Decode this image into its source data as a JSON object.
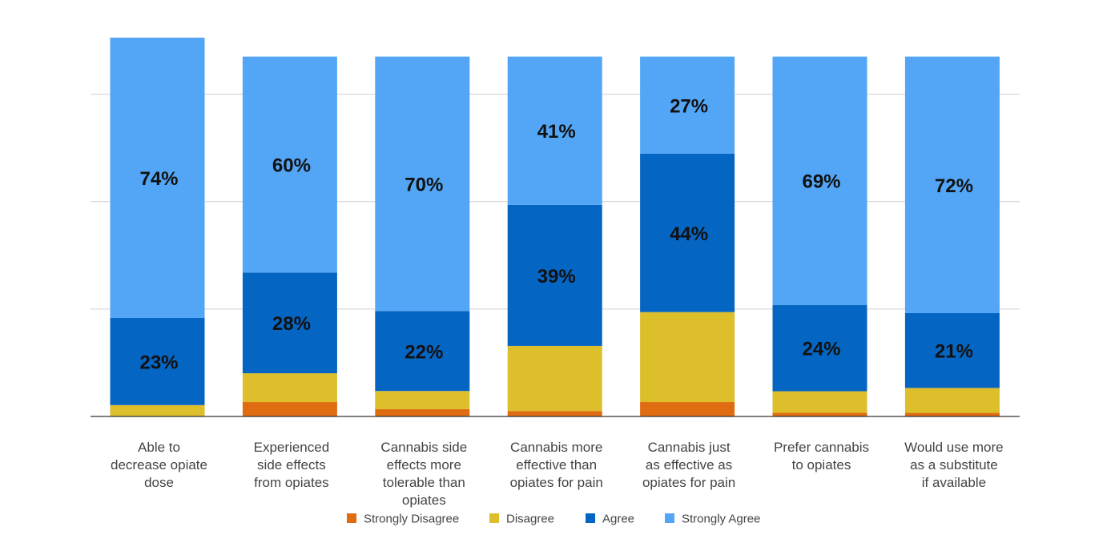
{
  "chart_data": {
    "type": "bar",
    "stacked": true,
    "grid": true,
    "legend_position": "bottom",
    "ylim": [
      0,
      100
    ],
    "categories": [
      [
        "Able to",
        "decrease opiate",
        "dose"
      ],
      [
        "Experienced",
        "side effects",
        "from opiates"
      ],
      [
        "Cannabis side",
        "effects more",
        "tolerable than",
        "opiates"
      ],
      [
        "Cannabis more",
        "effective than",
        "opiates for pain"
      ],
      [
        "Cannabis just",
        "as effective as",
        "opiates for pain"
      ],
      [
        "Prefer cannabis",
        "to opiates"
      ],
      [
        "Would use more",
        "as a substitute",
        "if available"
      ]
    ],
    "series": [
      {
        "name": "Strongly Disagree",
        "color": "#E06C12",
        "values": [
          0,
          4,
          2,
          1.5,
          4,
          1,
          1
        ]
      },
      {
        "name": "Disagree",
        "color": "#DDBE2B",
        "values": [
          3,
          8,
          5,
          18,
          25,
          6,
          7
        ]
      },
      {
        "name": "Agree",
        "color": "#0565C2",
        "values": [
          23,
          28,
          22,
          39,
          44,
          24,
          21
        ]
      },
      {
        "name": "Strongly Agree",
        "color": "#52A6F5",
        "values": [
          74,
          60,
          70,
          41,
          27,
          69,
          72
        ]
      }
    ],
    "labels": [
      {
        "series": "Agree",
        "texts": [
          "23%",
          "28%",
          "22%",
          "39%",
          "44%",
          "24%",
          "21%"
        ]
      },
      {
        "series": "Strongly Agree",
        "texts": [
          "74%",
          "60%",
          "70%",
          "41%",
          "27%",
          "69%",
          "72%"
        ]
      }
    ]
  }
}
